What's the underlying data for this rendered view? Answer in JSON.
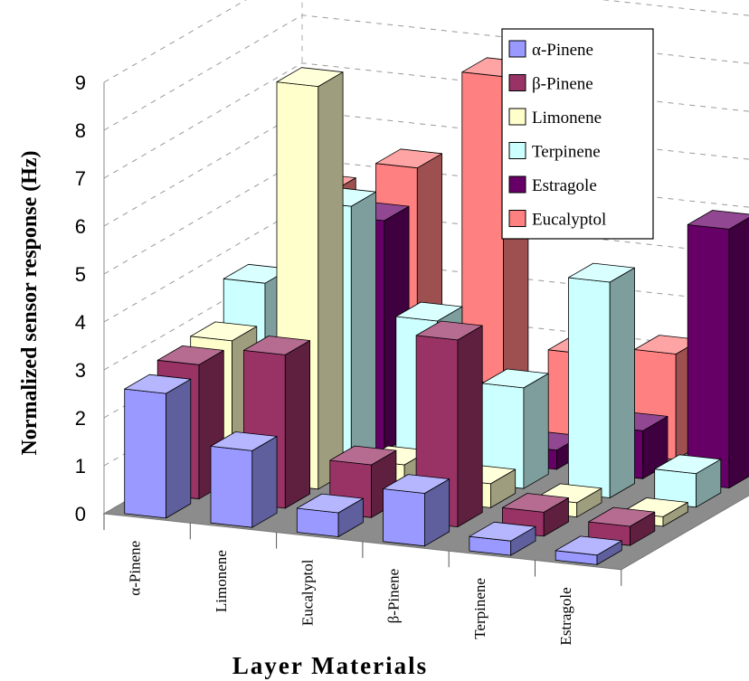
{
  "chart_data": {
    "type": "bar",
    "title": "",
    "xlabel": "Layer Materials",
    "ylabel": "Normalized sensor response (Hz)",
    "ylim": [
      0,
      9
    ],
    "yticks": [
      "0",
      "1",
      "2",
      "3",
      "4",
      "5",
      "6",
      "7",
      "8",
      "9"
    ],
    "categories": [
      "α-Pinene",
      "Limonene",
      "Eucalyptol",
      "β-Pinene",
      "Terpinene",
      "Estragole"
    ],
    "grid": true,
    "legend_position": "top-right",
    "series": [
      {
        "name": "α-Pinene",
        "color": "#9999FF",
        "values": [
          2.6,
          1.6,
          0.5,
          1.1,
          0.3,
          0.2
        ]
      },
      {
        "name": "β-Pinene",
        "color": "#993366",
        "values": [
          2.8,
          3.2,
          1.1,
          3.9,
          0.5,
          0.4
        ]
      },
      {
        "name": "Limonene",
        "color": "#FFFFCC",
        "values": [
          2.9,
          8.4,
          0.7,
          0.5,
          0.3,
          0.2
        ]
      },
      {
        "name": "Terpinene",
        "color": "#CCFFFF",
        "values": [
          3.7,
          5.5,
          3.3,
          2.1,
          4.5,
          0.7
        ]
      },
      {
        "name": "Estragole",
        "color": "#660066",
        "values": [
          0.6,
          4.8,
          1.3,
          0.4,
          1.0,
          5.4
        ]
      },
      {
        "name": "Eucalyptol",
        "color": "#FF8080",
        "values": [
          4.8,
          5.5,
          7.6,
          2.0,
          2.2,
          1.8
        ]
      }
    ]
  }
}
